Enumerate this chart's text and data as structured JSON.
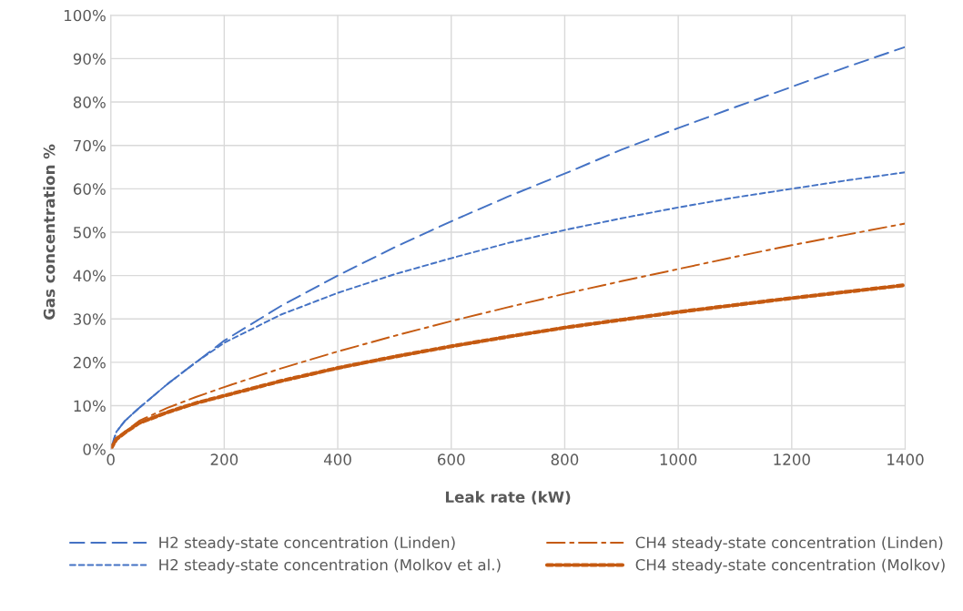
{
  "chart_data": {
    "type": "line",
    "xlabel": "Leak rate (kW)",
    "ylabel": "Gas concentration %",
    "xlim": [
      0,
      1400
    ],
    "xticks": [
      0,
      200,
      400,
      600,
      800,
      1000,
      1200,
      1400
    ],
    "ylim": [
      0,
      100
    ],
    "yticks": [
      {
        "value": 0,
        "label": "0%"
      },
      {
        "value": 10,
        "label": "10%"
      },
      {
        "value": 20,
        "label": "20%"
      },
      {
        "value": 30,
        "label": "30%"
      },
      {
        "value": 40,
        "label": "40%"
      },
      {
        "value": 50,
        "label": "50%"
      },
      {
        "value": 60,
        "label": "60%"
      },
      {
        "value": 70,
        "label": "70%"
      },
      {
        "value": 80,
        "label": "80%"
      },
      {
        "value": 90,
        "label": "90%"
      },
      {
        "value": 100,
        "label": "100%"
      }
    ],
    "grid": true,
    "legend": "bottom",
    "marker": "none",
    "x": [
      0,
      10,
      25,
      50,
      100,
      150,
      200,
      300,
      400,
      500,
      600,
      700,
      800,
      900,
      1000,
      1100,
      1200,
      1300,
      1400
    ],
    "series": [
      {
        "name": "H2 steady-state concentration (Linden)",
        "color": "#4472c4",
        "line_style": "dashed",
        "values": [
          0,
          4,
          6.5,
          9.5,
          15,
          20,
          25,
          33,
          40,
          46.5,
          52.5,
          58.2,
          63.5,
          69,
          74,
          78.8,
          83.5,
          88.2,
          92.7
        ]
      },
      {
        "name": "H2 steady-state concentration (Molkov et al.)",
        "color": "#4472c4",
        "line_style": "dotted",
        "values": [
          0,
          4,
          6.5,
          9.5,
          15,
          20,
          24.5,
          31,
          36,
          40.3,
          44,
          47.5,
          50.5,
          53.2,
          55.7,
          58,
          60,
          62,
          63.8
        ]
      },
      {
        "name": "CH4 steady-state concentration (Linden)",
        "color": "#c55a11",
        "line_style": "dashdot",
        "values": [
          0,
          2.5,
          4,
          6.5,
          9.5,
          12,
          14.3,
          18.6,
          22.5,
          26.1,
          29.5,
          32.7,
          35.8,
          38.7,
          41.5,
          44.3,
          47,
          49.5,
          52
        ]
      },
      {
        "name": "CH4 steady-state concentration (Molkov)",
        "color": "#c55a11",
        "line_style": "dashed",
        "values": [
          0,
          2.3,
          3.8,
          6,
          8.5,
          10.6,
          12.3,
          15.7,
          18.7,
          21.3,
          23.7,
          25.9,
          28,
          29.8,
          31.6,
          33.2,
          34.8,
          36.3,
          37.8
        ]
      }
    ]
  }
}
